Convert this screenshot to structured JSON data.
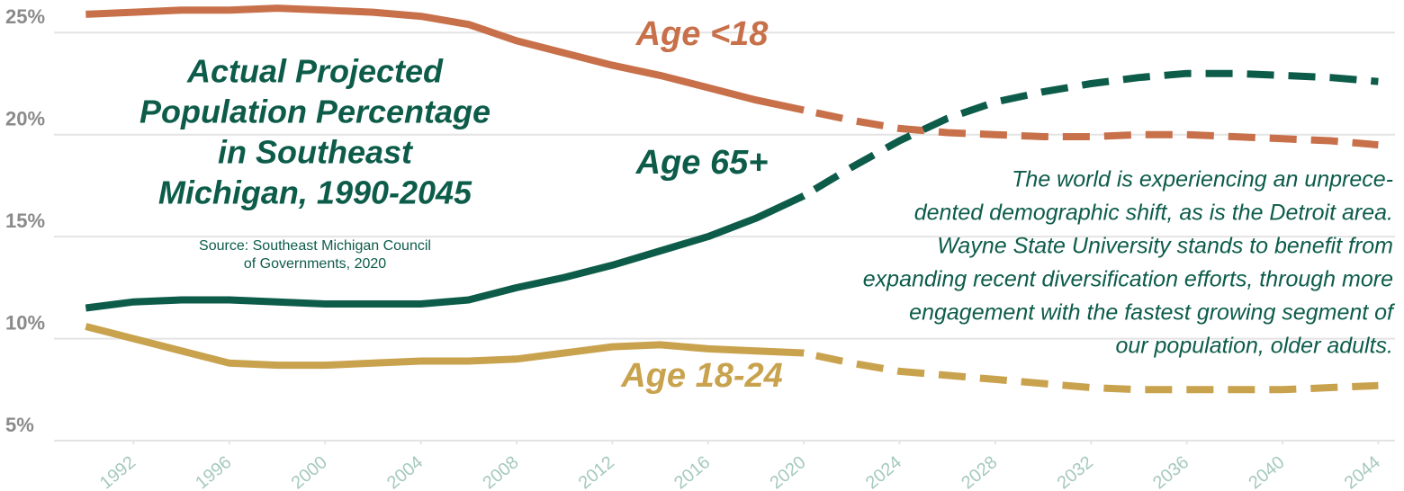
{
  "chart_data": {
    "type": "line",
    "title": [
      "Actual Projected",
      "Population Percentage",
      "in Southeast",
      "Michigan, 1990-2045"
    ],
    "source": [
      "Source: Southeast Michigan Council",
      "of Governments, 2020"
    ],
    "annotation": [
      "The world is experiencing an unprece-",
      "dented demographic shift, as is the Detroit area.",
      "Wayne State University stands to benefit from",
      "expanding recent diversification efforts, through more",
      "engagement with the fastest growing segment of",
      "our population, older adults."
    ],
    "x": [
      1990,
      1992,
      1994,
      1996,
      1998,
      2000,
      2002,
      2004,
      2006,
      2008,
      2010,
      2012,
      2014,
      2016,
      2018,
      2020,
      2022,
      2024,
      2026,
      2028,
      2030,
      2032,
      2034,
      2036,
      2038,
      2040,
      2042,
      2044
    ],
    "projected_from": 2020,
    "series": [
      {
        "name": "Age <18",
        "color": "#c8704a",
        "values": [
          25.9,
          26.0,
          26.1,
          26.1,
          26.2,
          26.1,
          26.0,
          25.8,
          25.4,
          24.6,
          24.0,
          23.4,
          22.9,
          22.3,
          21.7,
          21.2,
          20.7,
          20.3,
          20.1,
          20.0,
          19.9,
          19.9,
          20.0,
          20.0,
          19.9,
          19.8,
          19.7,
          19.5
        ]
      },
      {
        "name": "Age 65+",
        "color": "#0d5c4a",
        "values": [
          11.5,
          11.8,
          11.9,
          11.9,
          11.8,
          11.7,
          11.7,
          11.7,
          11.9,
          12.5,
          13.0,
          13.6,
          14.3,
          15.0,
          15.9,
          17.0,
          18.4,
          19.7,
          20.8,
          21.6,
          22.1,
          22.5,
          22.8,
          23.0,
          23.0,
          22.9,
          22.8,
          22.6
        ]
      },
      {
        "name": "Age 18-24",
        "color": "#c9a24e",
        "values": [
          10.6,
          10.0,
          9.4,
          8.8,
          8.7,
          8.7,
          8.8,
          8.9,
          8.9,
          9.0,
          9.3,
          9.6,
          9.7,
          9.5,
          9.4,
          9.3,
          8.8,
          8.4,
          8.2,
          8.0,
          7.8,
          7.6,
          7.5,
          7.5,
          7.5,
          7.5,
          7.6,
          7.7
        ]
      }
    ],
    "xlim": [
      1989.8,
      2044.7
    ],
    "ylim": [
      5,
      26.6
    ],
    "xticks": [
      1992,
      1996,
      2000,
      2004,
      2008,
      2012,
      2016,
      2020,
      2024,
      2028,
      2032,
      2036,
      2040,
      2044
    ],
    "yticks": [
      {
        "value": 5,
        "label": "5%"
      },
      {
        "value": 10,
        "label": "10%"
      },
      {
        "value": 15,
        "label": "15%"
      },
      {
        "value": 20,
        "label": "20%"
      },
      {
        "value": 25,
        "label": "25%"
      }
    ],
    "grid": true
  }
}
